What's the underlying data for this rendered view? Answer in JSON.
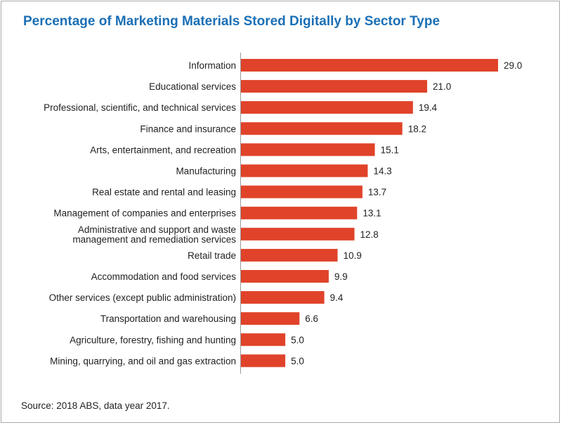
{
  "chart_data": {
    "type": "bar",
    "orientation": "horizontal",
    "title": "Percentage of Marketing Materials Stored Digitally by Sector Type",
    "xlabel": "",
    "ylabel": "",
    "xlim": [
      0,
      29
    ],
    "grid": false,
    "legend": "none",
    "bar_color": "#e0432a",
    "title_color": "#1a6fb5",
    "categories": [
      [
        "Information"
      ],
      [
        "Educational services"
      ],
      [
        "Professional, scientific, and technical services"
      ],
      [
        "Finance and insurance"
      ],
      [
        "Arts, entertainment, and recreation"
      ],
      [
        "Manufacturing"
      ],
      [
        "Real estate and rental and leasing"
      ],
      [
        "Management of companies and enterprises"
      ],
      [
        "Administrative and support and waste",
        "management and remediation services"
      ],
      [
        "Retail trade"
      ],
      [
        "Accommodation and food services"
      ],
      [
        "Other services (except public administration)"
      ],
      [
        "Transportation and warehousing"
      ],
      [
        "Agriculture, forestry, fishing and hunting"
      ],
      [
        "Mining, quarrying, and oil and gas extraction"
      ]
    ],
    "values": [
      29.0,
      21.0,
      19.4,
      18.2,
      15.1,
      14.3,
      13.7,
      13.1,
      12.8,
      10.9,
      9.9,
      9.4,
      6.6,
      5.0,
      5.0
    ],
    "value_labels": [
      "29.0",
      "21.0",
      "19.4",
      "18.2",
      "15.1",
      "14.3",
      "13.7",
      "13.1",
      "12.8",
      "10.9",
      "9.9",
      "9.4",
      "6.6",
      "5.0",
      "5.0"
    ]
  },
  "source_note": "Source: 2018 ABS, data year 2017."
}
